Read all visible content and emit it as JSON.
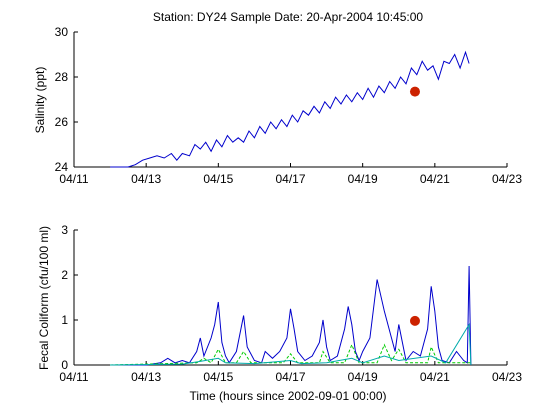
{
  "figure": {
    "title": "Station: DY24  Sample Date: 20-Apr-2004 10:45:00"
  },
  "chart_data": [
    {
      "type": "line",
      "title": "Station: DY24  Sample Date: 20-Apr-2004 10:45:00",
      "xlabel": "",
      "ylabel": "Salinity (ppt)",
      "xlim": [
        11.0,
        23.0
      ],
      "ylim": [
        24,
        30
      ],
      "xticks": [
        11,
        13,
        15,
        17,
        19,
        21,
        23
      ],
      "xtick_labels": [
        "04/11",
        "04/13",
        "04/15",
        "04/17",
        "04/19",
        "04/21",
        "04/23"
      ],
      "yticks": [
        24,
        26,
        28,
        30
      ],
      "ytick_labels": [
        "24",
        "26",
        "28",
        "30"
      ],
      "grid": false,
      "series": [
        {
          "color": "#0000cc",
          "x": [
            12.0,
            12.5,
            12.7,
            12.9,
            13.1,
            13.3,
            13.5,
            13.7,
            13.85,
            14.0,
            14.2,
            14.35,
            14.5,
            14.65,
            14.8,
            14.95,
            15.1,
            15.25,
            15.4,
            15.55,
            15.7,
            15.85,
            16.0,
            16.15,
            16.3,
            16.45,
            16.6,
            16.75,
            16.9,
            17.05,
            17.2,
            17.35,
            17.5,
            17.65,
            17.8,
            17.95,
            18.1,
            18.25,
            18.4,
            18.55,
            18.7,
            18.85,
            19.0,
            19.15,
            19.3,
            19.45,
            19.6,
            19.75,
            19.9,
            20.05,
            20.2,
            20.35,
            20.5,
            20.65,
            20.8,
            20.95,
            21.1,
            21.25,
            21.4,
            21.55,
            21.7,
            21.85,
            21.95
          ],
          "values": [
            24.0,
            24.0,
            24.1,
            24.3,
            24.4,
            24.5,
            24.4,
            24.6,
            24.3,
            24.6,
            24.5,
            25.0,
            24.8,
            25.1,
            24.7,
            25.2,
            24.9,
            25.4,
            25.1,
            25.3,
            25.1,
            25.6,
            25.3,
            25.8,
            25.5,
            26.0,
            25.7,
            26.1,
            25.8,
            26.3,
            26.0,
            26.5,
            26.3,
            26.7,
            26.4,
            26.9,
            26.6,
            27.1,
            26.8,
            27.2,
            26.9,
            27.3,
            27.0,
            27.5,
            27.1,
            27.6,
            27.3,
            27.8,
            27.5,
            28.0,
            27.7,
            28.4,
            28.1,
            28.7,
            28.3,
            28.5,
            27.9,
            28.7,
            28.6,
            29.0,
            28.4,
            29.1,
            28.6
          ]
        }
      ],
      "samples": [
        {
          "color": "#cc2200",
          "x": 20.45,
          "y": 27.35
        }
      ]
    },
    {
      "type": "line",
      "title": "",
      "xlabel": "Time (hours since 2002-09-01 00:00)",
      "ylabel": "Fecal Coliform (cfu/100 ml)",
      "xlim": [
        11.0,
        23.0
      ],
      "ylim": [
        0,
        3
      ],
      "xticks": [
        11,
        13,
        15,
        17,
        19,
        21,
        23
      ],
      "xtick_labels": [
        "04/11",
        "04/13",
        "04/15",
        "04/17",
        "04/19",
        "04/21",
        "04/23"
      ],
      "yticks": [
        0,
        1,
        2,
        3
      ],
      "ytick_labels": [
        "0",
        "1",
        "2",
        "3"
      ],
      "grid": false,
      "series": [
        {
          "color": "#0000cc",
          "x": [
            12.0,
            13.0,
            13.4,
            13.6,
            13.8,
            14.0,
            14.2,
            14.4,
            14.5,
            14.6,
            14.8,
            14.9,
            15.0,
            15.1,
            15.2,
            15.3,
            15.5,
            15.7,
            15.8,
            16.0,
            16.2,
            16.3,
            16.5,
            16.7,
            16.9,
            17.0,
            17.1,
            17.2,
            17.4,
            17.6,
            17.8,
            17.9,
            18.0,
            18.1,
            18.3,
            18.5,
            18.6,
            18.7,
            18.8,
            18.9,
            19.0,
            19.2,
            19.4,
            19.6,
            19.8,
            19.9,
            20.0,
            20.1,
            20.2,
            20.4,
            20.6,
            20.8,
            20.9,
            21.0,
            21.1,
            21.2,
            21.4,
            21.6,
            21.7,
            21.8,
            21.9,
            21.95,
            22.0
          ],
          "values": [
            0.0,
            0.0,
            0.05,
            0.15,
            0.05,
            0.1,
            0.05,
            0.3,
            0.6,
            0.2,
            0.6,
            0.9,
            1.4,
            0.5,
            0.2,
            0.05,
            0.3,
            1.1,
            0.4,
            0.1,
            0.05,
            0.3,
            0.15,
            0.3,
            0.6,
            1.25,
            0.8,
            0.3,
            0.1,
            0.2,
            0.5,
            1.0,
            0.4,
            0.1,
            0.2,
            0.8,
            1.3,
            0.9,
            0.3,
            0.1,
            0.3,
            0.6,
            1.9,
            1.2,
            0.6,
            0.3,
            0.9,
            0.5,
            0.1,
            0.3,
            0.2,
            0.8,
            1.75,
            1.2,
            0.4,
            0.1,
            0.05,
            0.3,
            0.2,
            0.1,
            0.05,
            2.2,
            0.0
          ]
        },
        {
          "color": "#00cc00",
          "dashed": true,
          "x": [
            12.0,
            14.4,
            14.6,
            14.8,
            15.0,
            15.2,
            15.5,
            15.7,
            15.9,
            16.8,
            17.0,
            17.2,
            17.8,
            17.9,
            18.1,
            18.5,
            18.7,
            18.9,
            19.4,
            19.6,
            19.8,
            20.0,
            20.2,
            20.8,
            20.9,
            21.1,
            21.9,
            22.0
          ],
          "values": [
            0.0,
            0.05,
            0.15,
            0.05,
            0.35,
            0.05,
            0.05,
            0.3,
            0.05,
            0.05,
            0.25,
            0.05,
            0.05,
            0.3,
            0.05,
            0.05,
            0.45,
            0.05,
            0.05,
            0.45,
            0.1,
            0.35,
            0.05,
            0.05,
            0.4,
            0.05,
            0.05,
            0.05
          ]
        },
        {
          "color": "#00aaaa",
          "x": [
            12.0,
            14.0,
            14.5,
            15.0,
            15.2,
            16.0,
            17.0,
            17.3,
            18.0,
            18.7,
            19.0,
            19.6,
            20.0,
            20.9,
            21.3,
            21.95,
            22.0
          ],
          "values": [
            0.0,
            0.02,
            0.08,
            0.15,
            0.05,
            0.03,
            0.1,
            0.03,
            0.05,
            0.15,
            0.05,
            0.2,
            0.1,
            0.2,
            0.05,
            0.9,
            0.0
          ]
        }
      ],
      "samples": [
        {
          "color": "#cc2200",
          "x": 20.45,
          "y": 0.98
        }
      ]
    }
  ]
}
